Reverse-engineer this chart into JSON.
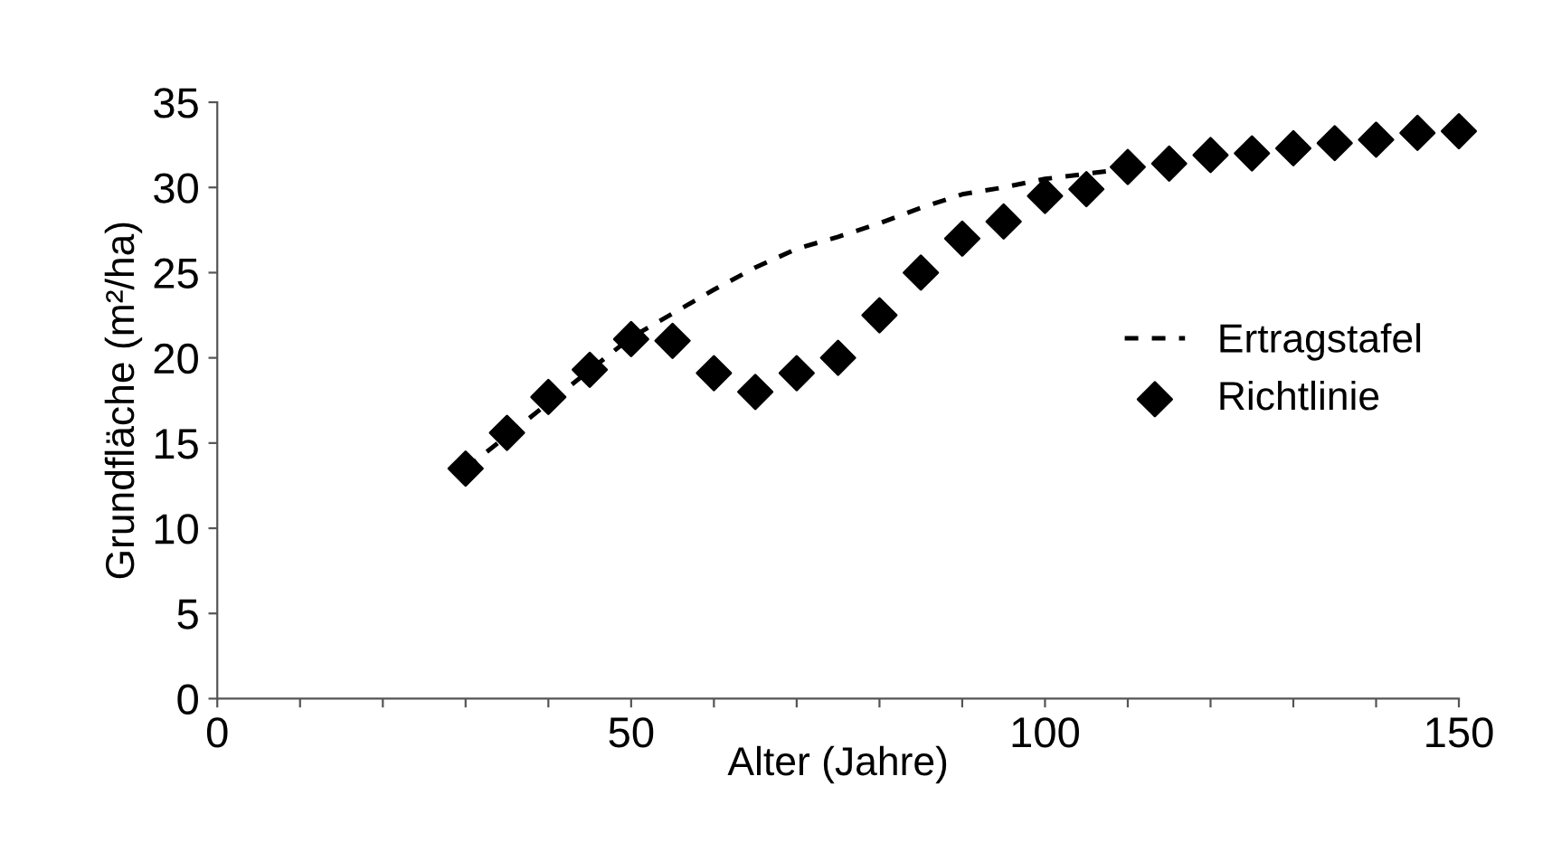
{
  "chart_data": {
    "type": "scatter",
    "xlabel": "Alter (Jahre)",
    "ylabel": "Grundfläche (m²/ha)",
    "xlim": [
      0,
      150
    ],
    "xticks": [
      0,
      {
        "value": 10,
        "label": null
      },
      {
        "value": 20,
        "label": null
      },
      {
        "value": 30,
        "label": null
      },
      {
        "value": 40,
        "label": null
      },
      50,
      {
        "value": 60,
        "label": null
      },
      {
        "value": 70,
        "label": null
      },
      {
        "value": 80,
        "label": null
      },
      {
        "value": 90,
        "label": null
      },
      100,
      {
        "value": 110,
        "label": null
      },
      {
        "value": 120,
        "label": null
      },
      {
        "value": 130,
        "label": null
      },
      {
        "value": 140,
        "label": null
      },
      150
    ],
    "ylim": [
      0,
      35
    ],
    "yticks": [
      0,
      5,
      10,
      15,
      20,
      25,
      30,
      35
    ],
    "grid": false,
    "legend": "right",
    "series": [
      {
        "name": "Ertragstafel",
        "type": "line",
        "line_style": "dashed",
        "marker": "none",
        "color": "#000000",
        "x": [
          30,
          50,
          55,
          60,
          65,
          70,
          75,
          80,
          85,
          90,
          95,
          100,
          105,
          110
        ],
        "values": [
          13.5,
          21.2,
          22.6,
          24.0,
          25.3,
          26.4,
          27.1,
          27.9,
          28.8,
          29.6,
          30.0,
          30.5,
          30.8,
          31.1
        ]
      },
      {
        "name": "Richtlinie",
        "marker": "diamond",
        "color": "#000000",
        "x": [
          30,
          35,
          40,
          45,
          50,
          55,
          60,
          65,
          70,
          75,
          80,
          85,
          90,
          95,
          100,
          105,
          110,
          115,
          120,
          125,
          130,
          135,
          140,
          145,
          150
        ],
        "values": [
          13.5,
          15.6,
          17.7,
          19.3,
          21.1,
          21.0,
          19.1,
          18.0,
          19.1,
          20.0,
          22.5,
          25.0,
          27.0,
          28.0,
          29.5,
          29.9,
          31.2,
          31.4,
          31.9,
          32.0,
          32.3,
          32.6,
          32.8,
          33.2,
          33.3
        ]
      }
    ]
  }
}
